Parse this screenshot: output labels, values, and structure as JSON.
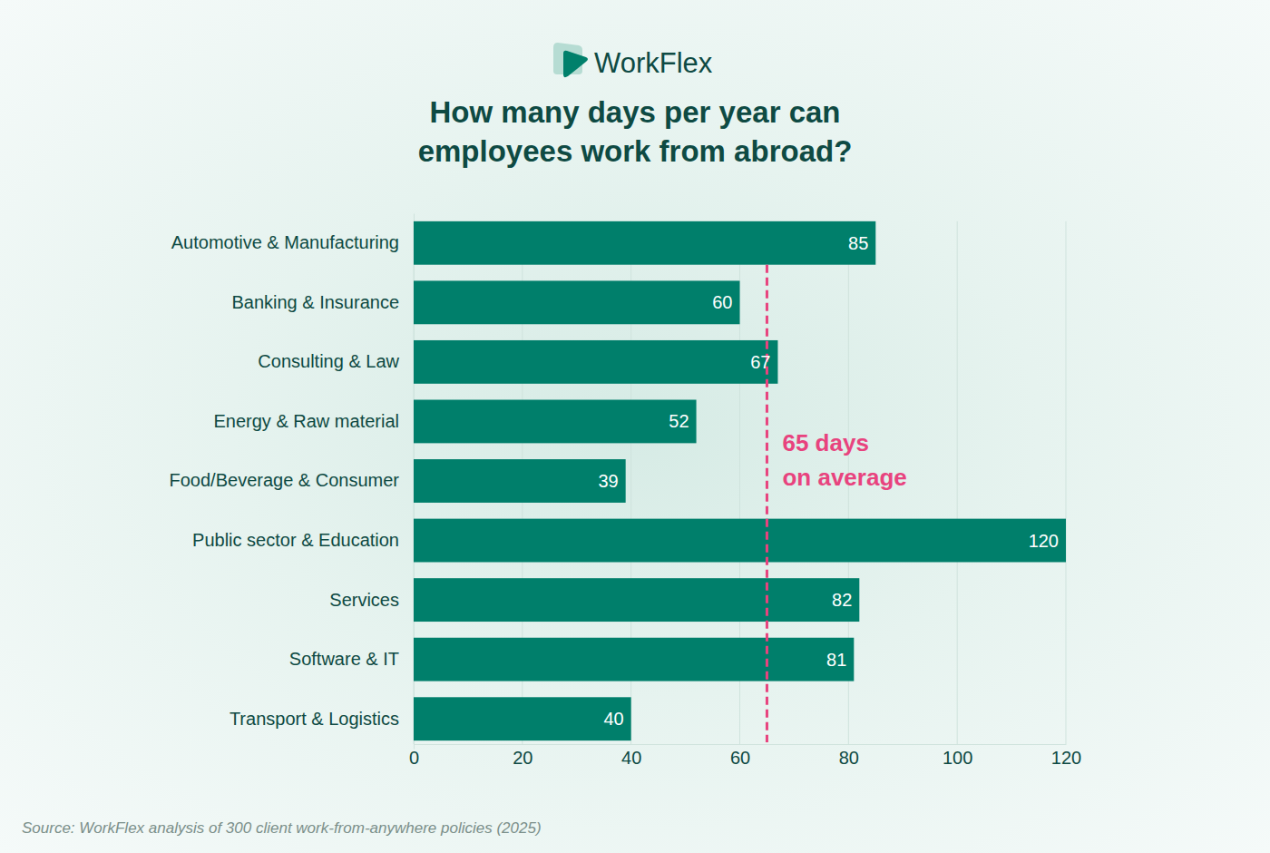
{
  "chart_data": {
    "type": "bar",
    "orientation": "horizontal",
    "logo": "WorkFlex",
    "title": "How many days per year can employees work from abroad?",
    "categories": [
      "Automotive & Manufacturing",
      "Banking & Insurance",
      "Consulting & Law",
      "Energy & Raw material",
      "Food/Beverage & Consumer",
      "Public sector & Education",
      "Services",
      "Software & IT",
      "Transport & Logistics"
    ],
    "values": [
      85,
      60,
      67,
      52,
      39,
      120,
      82,
      81,
      40
    ],
    "color": "#007f6b",
    "xlim": [
      0,
      120
    ],
    "xticks": [
      0,
      20,
      40,
      60,
      80,
      100,
      120
    ],
    "grid": true,
    "data_labels": true,
    "reference_line": {
      "value": 65,
      "label": [
        "65 days",
        "on average"
      ],
      "color": "#e8437e"
    },
    "source": "Source: WorkFlex analysis of 300 client work-from-anywhere policies (2025)"
  }
}
